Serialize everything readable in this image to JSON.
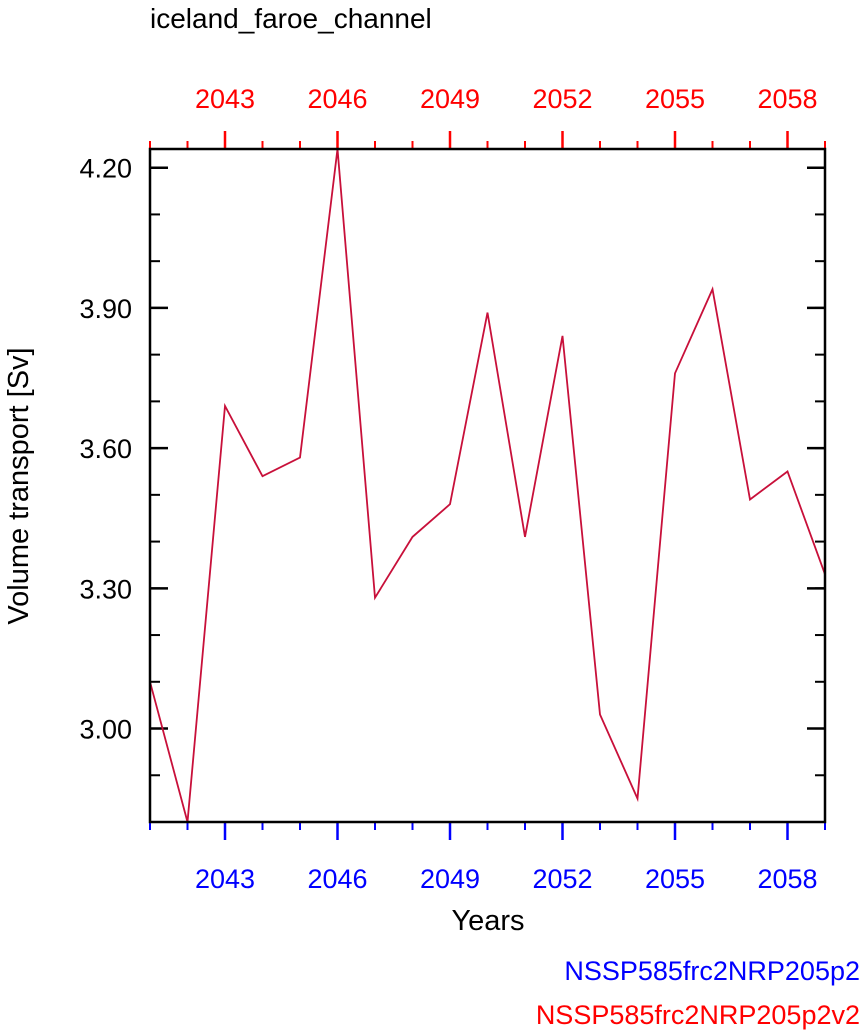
{
  "chart_data": {
    "type": "line",
    "title": "iceland_faroe_channel",
    "xlabel": "Years",
    "ylabel": "Volume transport [Sv]",
    "xlim": [
      2041,
      2059
    ],
    "ylim": [
      2.8,
      4.24
    ],
    "x_ticks": [
      2043,
      2046,
      2049,
      2052,
      2055,
      2058
    ],
    "x_tick_labels": [
      "2043",
      "2046",
      "2049",
      "2052",
      "2055",
      "2058"
    ],
    "y_ticks": [
      3.0,
      3.3,
      3.6,
      3.9,
      4.2
    ],
    "y_tick_labels": [
      "3.00",
      "3.30",
      "3.60",
      "3.90",
      "4.20"
    ],
    "grid": false,
    "series": [
      {
        "color": "#c8103a",
        "x": [
          2041,
          2042,
          2043,
          2044,
          2045,
          2046,
          2047,
          2048,
          2049,
          2050,
          2051,
          2052,
          2053,
          2054,
          2055,
          2056,
          2057,
          2058,
          2059
        ],
        "y": [
          3.1,
          2.8,
          3.69,
          3.54,
          3.58,
          4.24,
          3.28,
          3.41,
          3.48,
          3.89,
          3.41,
          3.84,
          3.03,
          2.85,
          3.76,
          3.94,
          3.49,
          3.55,
          3.33
        ]
      }
    ],
    "bottom_axis_color": "#0000ff",
    "top_axis_color": "#ff0000",
    "legend": [
      {
        "text": "NSSP585frc2NRP205p2",
        "color": "#0000ff"
      },
      {
        "text": "NSSP585frc2NRP205p2v2",
        "color": "#ff0000"
      }
    ],
    "legend_position": "bottom-right"
  }
}
